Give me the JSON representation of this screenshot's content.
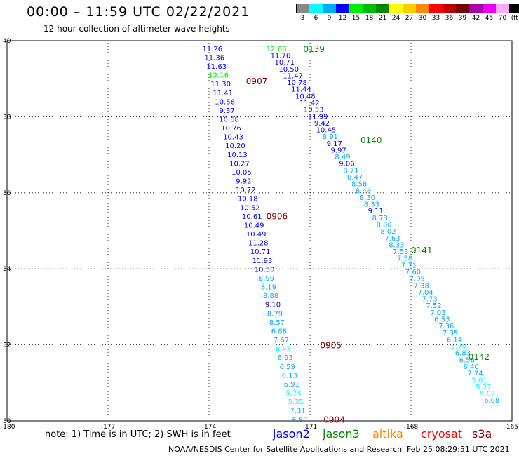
{
  "header": {
    "title": "00:00 – 11:59 UTC 02/22/2021",
    "subtitle": "12 hour collection of altimeter wave heights"
  },
  "colorbar": {
    "labels": [
      "3",
      "6",
      "9",
      "12",
      "15",
      "18",
      "21",
      "24",
      "27",
      "30",
      "33",
      "36",
      "39",
      "42",
      "45",
      "70",
      "(ft)"
    ],
    "colors": [
      "#888888",
      "#00ffff",
      "#00aaff",
      "#0000ff",
      "#00ee00",
      "#00bb00",
      "#008800",
      "#ffff00",
      "#ffcc00",
      "#ff8800",
      "#ff0000",
      "#bb0000",
      "#770000",
      "#aa00aa",
      "#ee00ee",
      "#ffaaff",
      "#000000"
    ]
  },
  "map": {
    "lon_range": [
      -180,
      -165
    ],
    "lat_range": [
      30,
      40
    ],
    "x_ticks": [
      "-180",
      "-177",
      "-174",
      "-171",
      "-168",
      "-165"
    ],
    "y_ticks": [
      "30",
      "32",
      "34",
      "36",
      "38",
      "40"
    ],
    "grid": "dotted"
  },
  "legend": {
    "note": "note:  1) Time is in UTC;  2) SWH is in feet",
    "missions": [
      {
        "name": "jason2",
        "color": "#0000ff"
      },
      {
        "name": "jason3",
        "color": "#008800"
      },
      {
        "name": "altika",
        "color": "#ff8800"
      },
      {
        "name": "cryosat",
        "color": "#ff0000"
      },
      {
        "name": "s3a",
        "color": "#880000"
      }
    ]
  },
  "footer": {
    "source": "NOAA/NESDIS Center for Satellite Applications and Research",
    "timestamp": "Feb 25 08:29:51 UTC 2021"
  },
  "chart_data": {
    "type": "scatter",
    "title": "12 hour collection of altimeter wave heights",
    "x_range": [
      -180,
      -165
    ],
    "y_range": [
      30,
      40
    ],
    "pass_labels": [
      {
        "time": "0139",
        "lon": -171.2,
        "lat": 39.8,
        "color": "#008800"
      },
      {
        "time": "0907",
        "lon": -172.9,
        "lat": 38.95,
        "color": "#880000"
      },
      {
        "time": "0140",
        "lon": -169.5,
        "lat": 37.4,
        "color": "#008800"
      },
      {
        "time": "0906",
        "lon": -172.3,
        "lat": 35.4,
        "color": "#880000"
      },
      {
        "time": "0141",
        "lon": -168.0,
        "lat": 34.5,
        "color": "#008800"
      },
      {
        "time": "0905",
        "lon": -170.7,
        "lat": 32.0,
        "color": "#880000"
      },
      {
        "time": "0142",
        "lon": -166.3,
        "lat": 31.7,
        "color": "#008800"
      },
      {
        "time": "0904",
        "lon": -170.6,
        "lat": 30.05,
        "color": "#880000"
      }
    ],
    "tracks": [
      {
        "name": "track-0907-0904",
        "start": [
          -173.9,
          39.8
        ],
        "end": [
          -171.3,
          30.05
        ],
        "values": [
          "11.26",
          "11.36",
          "11.63",
          "12.16",
          "11.30",
          "11.41",
          "10.56",
          "9.37",
          "10.68",
          "10.76",
          "10.43",
          "10.20",
          "10.13",
          "10.27",
          "10.05",
          "9.92",
          "10.72",
          "10.18",
          "10.52",
          "10.61",
          "10.49",
          "10.49",
          "11.28",
          "10.71",
          "11.93",
          "10.50",
          "8.99",
          "8.19",
          "8.88",
          "9.10",
          "8.79",
          "8.57",
          "6.88",
          "7.67",
          "6.43",
          "6.93",
          "6.59",
          "6.13",
          "6.91",
          "5.74",
          "5.35",
          "7.31",
          "6.67"
        ],
        "colors": [
          "#0000ff",
          "#0000ff",
          "#0000ff",
          "#00ee00",
          "#0000ff",
          "#0000ff",
          "#0000ff",
          "#0000ff",
          "#0000ff",
          "#0000ff",
          "#0000ff",
          "#0000ff",
          "#0000ff",
          "#0000ff",
          "#0000ff",
          "#0000ff",
          "#0000ff",
          "#0000ff",
          "#0000ff",
          "#0000ff",
          "#0000ff",
          "#0000ff",
          "#0000ff",
          "#0000ff",
          "#0000ff",
          "#0000ff",
          "#00aaff",
          "#00aaff",
          "#00aaff",
          "#0000ff",
          "#00aaff",
          "#00aaff",
          "#00aaff",
          "#00aaff",
          "#00ffff",
          "#00aaff",
          "#00aaff",
          "#00aaff",
          "#00aaff",
          "#00ffff",
          "#00ffff",
          "#00aaff",
          "#00aaff"
        ]
      },
      {
        "name": "track-0139-0142",
        "start": [
          -172.0,
          39.8
        ],
        "end": [
          -165.6,
          30.55
        ],
        "values": [
          "12.66",
          "11.76",
          "10.71",
          "10.50",
          "11.47",
          "10.78",
          "11.44",
          "10.48",
          "11.42",
          "10.53",
          "11.99",
          "9.42",
          "10.45",
          "8.91",
          "9.17",
          "9.97",
          "8.49",
          "9.06",
          "8.71",
          "8.47",
          "8.58",
          "8.46",
          "8.30",
          "8.33",
          "9.11",
          "8.73",
          "8.80",
          "8.02",
          "7.63",
          "8.33",
          "7.53",
          "7.58",
          "7.71",
          "7.60",
          "7.95",
          "7.38",
          "7.04",
          "7.73",
          "7.52",
          "7.03",
          "6.53",
          "7.36",
          "7.35",
          "6.14",
          "5.79",
          "6.83",
          "6.56",
          "6.40",
          "7.74",
          "5.01",
          "5.27",
          "5.97",
          "6.08"
        ],
        "colors": [
          "#00ee00",
          "#0000ff",
          "#0000ff",
          "#0000ff",
          "#0000ff",
          "#0000ff",
          "#0000ff",
          "#0000ff",
          "#0000ff",
          "#0000ff",
          "#0000ff",
          "#0000ff",
          "#0000ff",
          "#00aaff",
          "#0000ff",
          "#0000ff",
          "#00aaff",
          "#0000ff",
          "#00aaff",
          "#00aaff",
          "#00aaff",
          "#00aaff",
          "#00aaff",
          "#00aaff",
          "#0000ff",
          "#00aaff",
          "#00aaff",
          "#00aaff",
          "#00aaff",
          "#00aaff",
          "#00aaff",
          "#00aaff",
          "#00aaff",
          "#00aaff",
          "#00aaff",
          "#00aaff",
          "#00aaff",
          "#00aaff",
          "#00aaff",
          "#00aaff",
          "#00aaff",
          "#00aaff",
          "#00aaff",
          "#00aaff",
          "#00ffff",
          "#00aaff",
          "#00aaff",
          "#00aaff",
          "#00aaff",
          "#00ffff",
          "#00ffff",
          "#00ffff",
          "#00aaff"
        ]
      }
    ]
  }
}
